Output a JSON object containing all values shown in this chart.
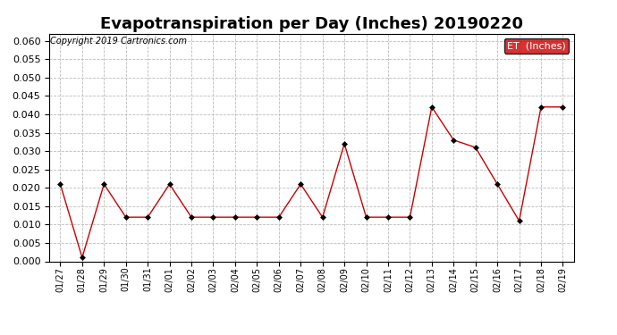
{
  "title": "Evapotranspiration per Day (Inches) 20190220",
  "copyright": "Copyright 2019 Cartronics.com",
  "legend_label": "ET  (Inches)",
  "dates": [
    "01/27",
    "01/28",
    "01/29",
    "01/30",
    "01/31",
    "02/01",
    "02/02",
    "02/03",
    "02/04",
    "02/05",
    "02/06",
    "02/07",
    "02/08",
    "02/09",
    "02/10",
    "02/11",
    "02/12",
    "02/13",
    "02/14",
    "02/15",
    "02/16",
    "02/17",
    "02/18",
    "02/19"
  ],
  "values": [
    0.021,
    0.001,
    0.021,
    0.012,
    0.012,
    0.021,
    0.012,
    0.012,
    0.012,
    0.012,
    0.012,
    0.021,
    0.012,
    0.032,
    0.012,
    0.012,
    0.012,
    0.042,
    0.033,
    0.031,
    0.021,
    0.011,
    0.042,
    0.042
  ],
  "line_color": "#cc0000",
  "marker": "D",
  "marker_color": "#000000",
  "marker_size": 3,
  "ylim": [
    0.0,
    0.062
  ],
  "yticks": [
    0.0,
    0.005,
    0.01,
    0.015,
    0.02,
    0.025,
    0.03,
    0.035,
    0.04,
    0.045,
    0.05,
    0.055,
    0.06
  ],
  "grid_color": "#bbbbbb",
  "bg_color": "#ffffff",
  "title_fontsize": 13,
  "copyright_fontsize": 7,
  "legend_bg": "#cc0000",
  "legend_text_color": "#ffffff",
  "tick_fontsize": 8,
  "xtick_fontsize": 7
}
